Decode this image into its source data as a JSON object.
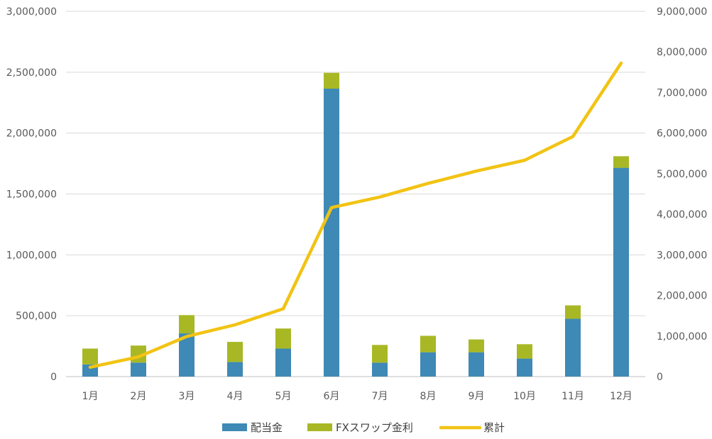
{
  "chart_data": {
    "type": "bar",
    "stacked": true,
    "categories": [
      "1月",
      "2月",
      "3月",
      "4月",
      "5月",
      "6月",
      "7月",
      "8月",
      "9月",
      "10月",
      "11月",
      "12月"
    ],
    "series": [
      {
        "name": "配当金",
        "type": "bar",
        "axis": "left",
        "color": "#3e89b5",
        "values": [
          100000,
          115000,
          355000,
          120000,
          230000,
          2365000,
          115000,
          200000,
          200000,
          148000,
          475000,
          1715000
        ]
      },
      {
        "name": "FXスワップ金利",
        "type": "bar",
        "axis": "left",
        "color": "#a8b824",
        "values": [
          130000,
          140000,
          150000,
          165000,
          165000,
          130000,
          145000,
          135000,
          105000,
          118000,
          110000,
          95000
        ]
      },
      {
        "name": "累計",
        "type": "line",
        "axis": "right",
        "color": "#f2c314",
        "values": [
          230000,
          485000,
          990000,
          1275000,
          1670000,
          4165000,
          4425000,
          4760000,
          5065000,
          5330000,
          5915000,
          7725000
        ]
      }
    ],
    "y_left": {
      "min": 0,
      "max": 3000000,
      "step": 500000,
      "tick_labels": [
        "0",
        "500,000",
        "1,000,000",
        "1,500,000",
        "2,000,000",
        "2,500,000",
        "3,000,000"
      ]
    },
    "y_right": {
      "min": 0,
      "max": 9000000,
      "step": 1000000,
      "tick_labels": [
        "0",
        "1,000,000",
        "2,000,000",
        "3,000,000",
        "4,000,000",
        "5,000,000",
        "6,000,000",
        "7,000,000",
        "8,000,000",
        "9,000,000"
      ]
    },
    "grid": true,
    "legend_position": "bottom"
  }
}
